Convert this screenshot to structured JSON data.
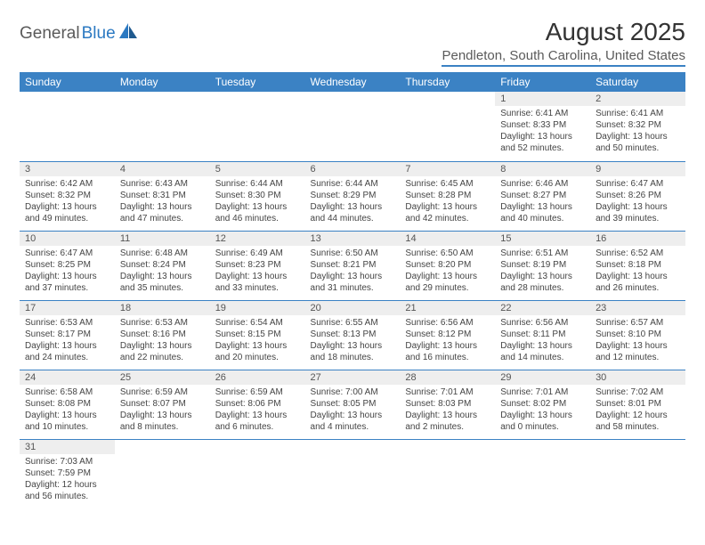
{
  "logo": {
    "text_dark": "General",
    "text_blue": "Blue"
  },
  "title": "August 2025",
  "location": "Pendleton, South Carolina, United States",
  "colors": {
    "header_bg": "#3b82c4",
    "header_text": "#ffffff",
    "daynum_bg": "#eeeeee",
    "border": "#3b82c4",
    "logo_blue": "#2b79c2",
    "logo_dark": "#5a5a5a"
  },
  "weekdays": [
    "Sunday",
    "Monday",
    "Tuesday",
    "Wednesday",
    "Thursday",
    "Friday",
    "Saturday"
  ],
  "weeks": [
    [
      null,
      null,
      null,
      null,
      null,
      {
        "n": "1",
        "sr": "Sunrise: 6:41 AM",
        "ss": "Sunset: 8:33 PM",
        "dl1": "Daylight: 13 hours",
        "dl2": "and 52 minutes."
      },
      {
        "n": "2",
        "sr": "Sunrise: 6:41 AM",
        "ss": "Sunset: 8:32 PM",
        "dl1": "Daylight: 13 hours",
        "dl2": "and 50 minutes."
      }
    ],
    [
      {
        "n": "3",
        "sr": "Sunrise: 6:42 AM",
        "ss": "Sunset: 8:32 PM",
        "dl1": "Daylight: 13 hours",
        "dl2": "and 49 minutes."
      },
      {
        "n": "4",
        "sr": "Sunrise: 6:43 AM",
        "ss": "Sunset: 8:31 PM",
        "dl1": "Daylight: 13 hours",
        "dl2": "and 47 minutes."
      },
      {
        "n": "5",
        "sr": "Sunrise: 6:44 AM",
        "ss": "Sunset: 8:30 PM",
        "dl1": "Daylight: 13 hours",
        "dl2": "and 46 minutes."
      },
      {
        "n": "6",
        "sr": "Sunrise: 6:44 AM",
        "ss": "Sunset: 8:29 PM",
        "dl1": "Daylight: 13 hours",
        "dl2": "and 44 minutes."
      },
      {
        "n": "7",
        "sr": "Sunrise: 6:45 AM",
        "ss": "Sunset: 8:28 PM",
        "dl1": "Daylight: 13 hours",
        "dl2": "and 42 minutes."
      },
      {
        "n": "8",
        "sr": "Sunrise: 6:46 AM",
        "ss": "Sunset: 8:27 PM",
        "dl1": "Daylight: 13 hours",
        "dl2": "and 40 minutes."
      },
      {
        "n": "9",
        "sr": "Sunrise: 6:47 AM",
        "ss": "Sunset: 8:26 PM",
        "dl1": "Daylight: 13 hours",
        "dl2": "and 39 minutes."
      }
    ],
    [
      {
        "n": "10",
        "sr": "Sunrise: 6:47 AM",
        "ss": "Sunset: 8:25 PM",
        "dl1": "Daylight: 13 hours",
        "dl2": "and 37 minutes."
      },
      {
        "n": "11",
        "sr": "Sunrise: 6:48 AM",
        "ss": "Sunset: 8:24 PM",
        "dl1": "Daylight: 13 hours",
        "dl2": "and 35 minutes."
      },
      {
        "n": "12",
        "sr": "Sunrise: 6:49 AM",
        "ss": "Sunset: 8:23 PM",
        "dl1": "Daylight: 13 hours",
        "dl2": "and 33 minutes."
      },
      {
        "n": "13",
        "sr": "Sunrise: 6:50 AM",
        "ss": "Sunset: 8:21 PM",
        "dl1": "Daylight: 13 hours",
        "dl2": "and 31 minutes."
      },
      {
        "n": "14",
        "sr": "Sunrise: 6:50 AM",
        "ss": "Sunset: 8:20 PM",
        "dl1": "Daylight: 13 hours",
        "dl2": "and 29 minutes."
      },
      {
        "n": "15",
        "sr": "Sunrise: 6:51 AM",
        "ss": "Sunset: 8:19 PM",
        "dl1": "Daylight: 13 hours",
        "dl2": "and 28 minutes."
      },
      {
        "n": "16",
        "sr": "Sunrise: 6:52 AM",
        "ss": "Sunset: 8:18 PM",
        "dl1": "Daylight: 13 hours",
        "dl2": "and 26 minutes."
      }
    ],
    [
      {
        "n": "17",
        "sr": "Sunrise: 6:53 AM",
        "ss": "Sunset: 8:17 PM",
        "dl1": "Daylight: 13 hours",
        "dl2": "and 24 minutes."
      },
      {
        "n": "18",
        "sr": "Sunrise: 6:53 AM",
        "ss": "Sunset: 8:16 PM",
        "dl1": "Daylight: 13 hours",
        "dl2": "and 22 minutes."
      },
      {
        "n": "19",
        "sr": "Sunrise: 6:54 AM",
        "ss": "Sunset: 8:15 PM",
        "dl1": "Daylight: 13 hours",
        "dl2": "and 20 minutes."
      },
      {
        "n": "20",
        "sr": "Sunrise: 6:55 AM",
        "ss": "Sunset: 8:13 PM",
        "dl1": "Daylight: 13 hours",
        "dl2": "and 18 minutes."
      },
      {
        "n": "21",
        "sr": "Sunrise: 6:56 AM",
        "ss": "Sunset: 8:12 PM",
        "dl1": "Daylight: 13 hours",
        "dl2": "and 16 minutes."
      },
      {
        "n": "22",
        "sr": "Sunrise: 6:56 AM",
        "ss": "Sunset: 8:11 PM",
        "dl1": "Daylight: 13 hours",
        "dl2": "and 14 minutes."
      },
      {
        "n": "23",
        "sr": "Sunrise: 6:57 AM",
        "ss": "Sunset: 8:10 PM",
        "dl1": "Daylight: 13 hours",
        "dl2": "and 12 minutes."
      }
    ],
    [
      {
        "n": "24",
        "sr": "Sunrise: 6:58 AM",
        "ss": "Sunset: 8:08 PM",
        "dl1": "Daylight: 13 hours",
        "dl2": "and 10 minutes."
      },
      {
        "n": "25",
        "sr": "Sunrise: 6:59 AM",
        "ss": "Sunset: 8:07 PM",
        "dl1": "Daylight: 13 hours",
        "dl2": "and 8 minutes."
      },
      {
        "n": "26",
        "sr": "Sunrise: 6:59 AM",
        "ss": "Sunset: 8:06 PM",
        "dl1": "Daylight: 13 hours",
        "dl2": "and 6 minutes."
      },
      {
        "n": "27",
        "sr": "Sunrise: 7:00 AM",
        "ss": "Sunset: 8:05 PM",
        "dl1": "Daylight: 13 hours",
        "dl2": "and 4 minutes."
      },
      {
        "n": "28",
        "sr": "Sunrise: 7:01 AM",
        "ss": "Sunset: 8:03 PM",
        "dl1": "Daylight: 13 hours",
        "dl2": "and 2 minutes."
      },
      {
        "n": "29",
        "sr": "Sunrise: 7:01 AM",
        "ss": "Sunset: 8:02 PM",
        "dl1": "Daylight: 13 hours",
        "dl2": "and 0 minutes."
      },
      {
        "n": "30",
        "sr": "Sunrise: 7:02 AM",
        "ss": "Sunset: 8:01 PM",
        "dl1": "Daylight: 12 hours",
        "dl2": "and 58 minutes."
      }
    ],
    [
      {
        "n": "31",
        "sr": "Sunrise: 7:03 AM",
        "ss": "Sunset: 7:59 PM",
        "dl1": "Daylight: 12 hours",
        "dl2": "and 56 minutes."
      },
      null,
      null,
      null,
      null,
      null,
      null
    ]
  ]
}
